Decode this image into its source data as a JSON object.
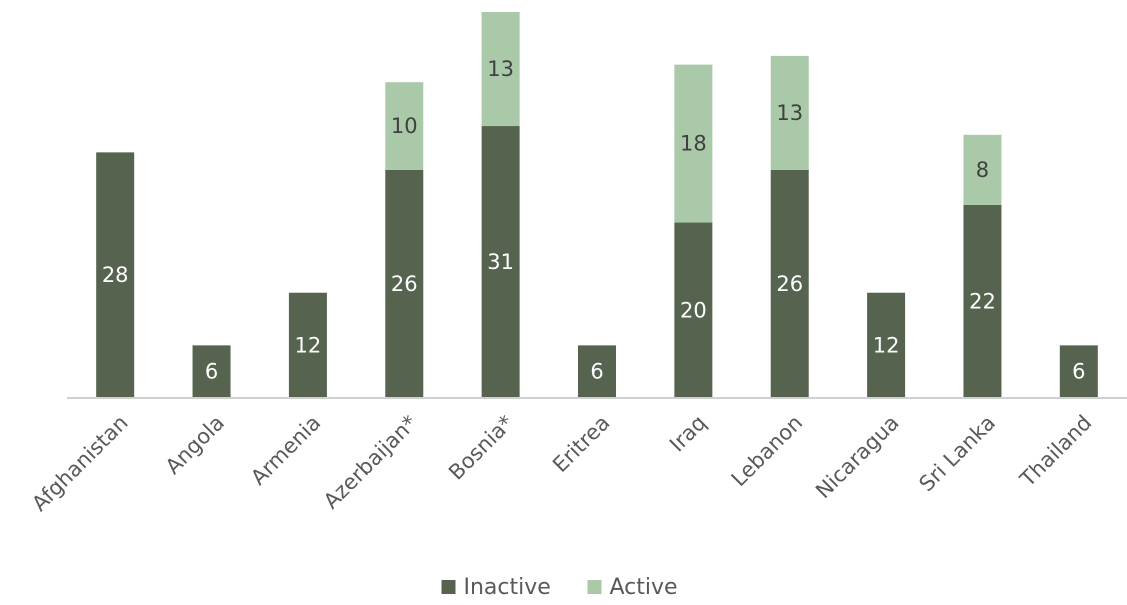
{
  "chart_data": {
    "type": "bar",
    "stacked": true,
    "title": "",
    "xlabel": "",
    "ylabel": "",
    "ylim": [
      0,
      44
    ],
    "grid": false,
    "legend_position": "bottom",
    "categories": [
      "Afghanistan",
      "Angola",
      "Armenia",
      "Azerbaijan*",
      "Bosnia*",
      "Eritrea",
      "Iraq",
      "Lebanon",
      "Nicaragua",
      "Sri Lanka",
      "Thailand"
    ],
    "series": [
      {
        "name": "Inactive",
        "color": "#56634f",
        "label_color": "#ffffff",
        "values": [
          28,
          6,
          12,
          26,
          31,
          6,
          20,
          26,
          12,
          22,
          6
        ]
      },
      {
        "name": "Active",
        "color": "#a9c9a8",
        "label_color": "#404040",
        "values": [
          0,
          0,
          0,
          10,
          13,
          0,
          18,
          13,
          0,
          8,
          0
        ]
      }
    ]
  }
}
